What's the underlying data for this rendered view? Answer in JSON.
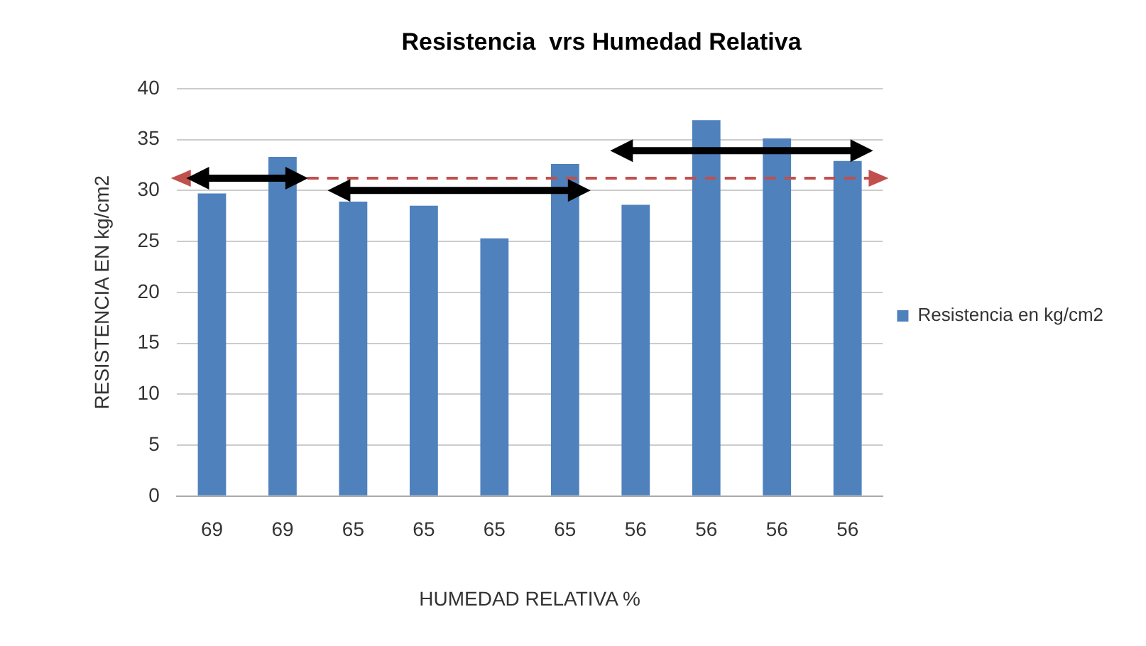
{
  "chart_data": {
    "type": "bar",
    "title": "Resistencia  vrs Humedad Relativa",
    "xlabel": "HUMEDAD RELATIVA %",
    "ylabel": "RESISTENCIA EN kg/cm2",
    "categories": [
      "69",
      "69",
      "65",
      "65",
      "65",
      "65",
      "56",
      "56",
      "56",
      "56"
    ],
    "series": [
      {
        "name": "Resistencia en kg/cm2",
        "color": "#4f81bd",
        "values": [
          29.7,
          33.3,
          28.9,
          28.5,
          25.3,
          32.6,
          28.6,
          36.9,
          35.1,
          32.9
        ]
      }
    ],
    "ylim": [
      0,
      40
    ],
    "yticks": [
      0,
      5,
      10,
      15,
      20,
      25,
      30,
      35,
      40
    ],
    "grid": "y",
    "legend": "right",
    "ref_lines": [
      {
        "axis": "y",
        "value": 31.2,
        "color": "#c0504d",
        "line_style": "dashed"
      }
    ]
  }
}
